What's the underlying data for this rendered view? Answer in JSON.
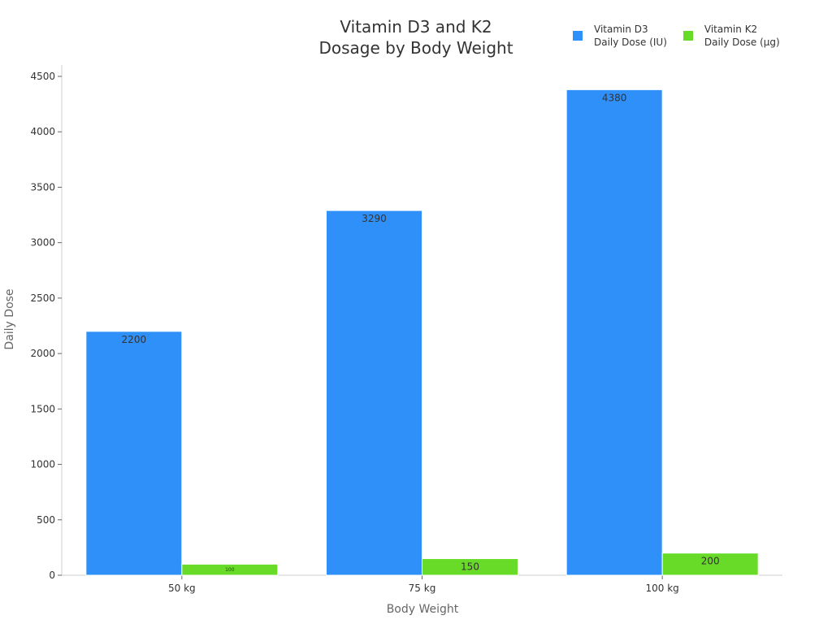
{
  "chart_data": {
    "type": "bar",
    "title_line1": "Vitamin D3 and K2",
    "title_line2": "Dosage by Body Weight",
    "xlabel": "Body Weight",
    "ylabel": "Daily Dose",
    "categories": [
      "50 kg",
      "75 kg",
      "100 kg"
    ],
    "ylim": [
      0,
      4600
    ],
    "yticks": [
      0,
      500,
      1000,
      1500,
      2000,
      2500,
      3000,
      3500,
      4000,
      4500
    ],
    "grid": false,
    "legend_position": "top-right",
    "series": [
      {
        "name_line1": "Vitamin D3",
        "name_line2": "Daily Dose (IU)",
        "color": "#2E90F8",
        "values": [
          2200,
          3290,
          4380
        ]
      },
      {
        "name_line1": "Vitamin K2",
        "name_line2": "Daily Dose (µg)",
        "color": "#67DB27",
        "values": [
          100,
          150,
          200
        ]
      }
    ]
  }
}
